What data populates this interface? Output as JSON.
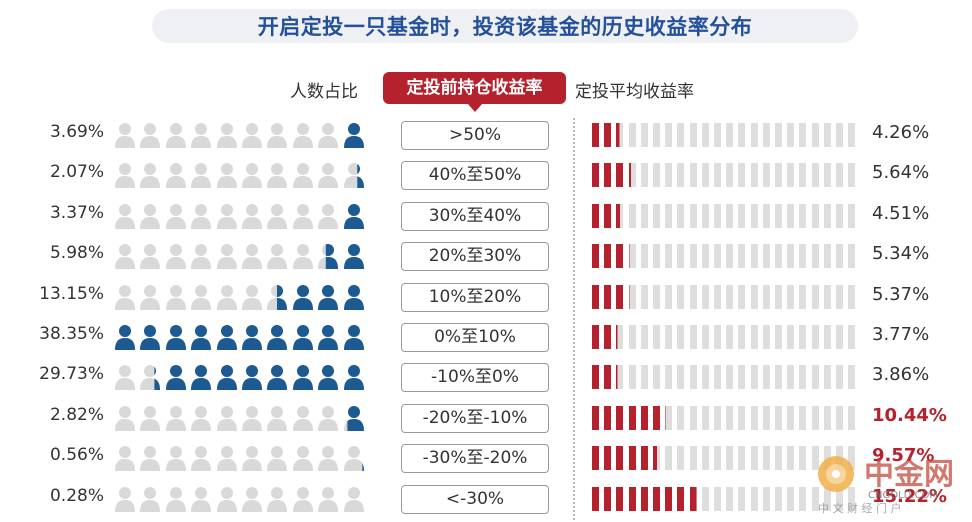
{
  "title": "开启定投一只基金时，投资该基金的历史收益率分布",
  "headers": {
    "left": "人数占比",
    "middle": "定投前持仓收益率",
    "right": "定投平均收益率"
  },
  "colors": {
    "person_filled": "#1d5a92",
    "person_empty": "#d9d9d9",
    "bar_filled": "#b5212c",
    "bar_empty": "#dedede",
    "highlight_text": "#b5212c"
  },
  "chart_data": {
    "type": "table",
    "columns": [
      "人数占比",
      "定投前持仓收益率",
      "定投平均收益率"
    ],
    "icons_per_row": 10,
    "bar_segments_per_row": 22,
    "rows": [
      {
        "share_label": "3.69%",
        "share": 3.69,
        "range": ">50%",
        "avg_return_label": "4.26%",
        "avg_return": 4.26,
        "highlight": false
      },
      {
        "share_label": "2.07%",
        "share": 2.07,
        "range": "40%至50%",
        "avg_return_label": "5.64%",
        "avg_return": 5.64,
        "highlight": false
      },
      {
        "share_label": "3.37%",
        "share": 3.37,
        "range": "30%至40%",
        "avg_return_label": "4.51%",
        "avg_return": 4.51,
        "highlight": false
      },
      {
        "share_label": "5.98%",
        "share": 5.98,
        "range": "20%至30%",
        "avg_return_label": "5.34%",
        "avg_return": 5.34,
        "highlight": false
      },
      {
        "share_label": "13.15%",
        "share": 13.15,
        "range": "10%至20%",
        "avg_return_label": "5.37%",
        "avg_return": 5.37,
        "highlight": false
      },
      {
        "share_label": "38.35%",
        "share": 38.35,
        "range": "0%至10%",
        "avg_return_label": "3.77%",
        "avg_return": 3.77,
        "highlight": false
      },
      {
        "share_label": "29.73%",
        "share": 29.73,
        "range": "-10%至0%",
        "avg_return_label": "3.86%",
        "avg_return": 3.86,
        "highlight": false
      },
      {
        "share_label": "2.82%",
        "share": 2.82,
        "range": "-20%至-10%",
        "avg_return_label": "10.44%",
        "avg_return": 10.44,
        "highlight": true
      },
      {
        "share_label": "0.56%",
        "share": 0.56,
        "range": "-30%至-20%",
        "avg_return_label": "9.57%",
        "avg_return": 9.57,
        "highlight": true
      },
      {
        "share_label": "0.28%",
        "share": 0.28,
        "range": "<-30%",
        "avg_return_label": "15.22%",
        "avg_return": 15.22,
        "highlight": true
      }
    ],
    "person_fill_units": [
      1,
      0.35,
      1,
      1.6,
      3.5,
      10,
      8.3,
      0.8,
      0.12,
      0
    ],
    "bar_fill_units": [
      2.5,
      3.3,
      2.6,
      3.1,
      3.1,
      2.2,
      2.2,
      6.1,
      5.6,
      8.9
    ]
  },
  "watermark": {
    "brand": "中金网",
    "domain": "CNGOLD.COM",
    "tagline": "中 文 财 经 门 户"
  }
}
